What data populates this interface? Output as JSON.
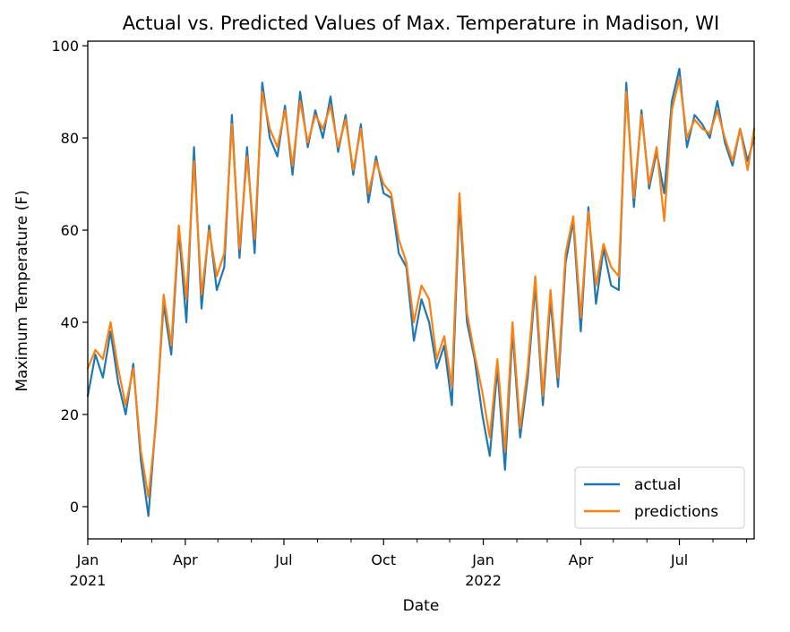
{
  "chart_data": {
    "type": "line",
    "title": "Actual vs. Predicted Values of Max. Temperature in Madison, WI",
    "xlabel": "Date",
    "ylabel": "Maximum Temperature (F)",
    "x_start": "2021-01-01",
    "x_end": "2022-09-08",
    "xlim": [
      "2021-01-01",
      "2022-09-08"
    ],
    "ylim": [
      -7,
      101
    ],
    "y_ticks": [
      0,
      20,
      40,
      60,
      80,
      100
    ],
    "x_major_ticks": [
      {
        "date": "2021-01-01",
        "label": "Jan",
        "year": "2021"
      },
      {
        "date": "2021-04-01",
        "label": "Apr",
        "year": ""
      },
      {
        "date": "2021-07-01",
        "label": "Jul",
        "year": ""
      },
      {
        "date": "2021-10-01",
        "label": "Oct",
        "year": ""
      },
      {
        "date": "2022-01-01",
        "label": "Jan",
        "year": "2022"
      },
      {
        "date": "2022-04-01",
        "label": "Apr",
        "year": ""
      },
      {
        "date": "2022-07-01",
        "label": "Jul",
        "year": ""
      }
    ],
    "x_minor_ticks": [
      "2021-02-01",
      "2021-03-01",
      "2021-05-01",
      "2021-06-01",
      "2021-08-01",
      "2021-09-01",
      "2021-11-01",
      "2021-12-01",
      "2022-02-01",
      "2022-03-01",
      "2022-05-01",
      "2022-06-01",
      "2022-08-01",
      "2022-09-01"
    ],
    "grid": false,
    "legend_position": "lower-right",
    "x_resolution": "weekly (approximate)",
    "series": [
      {
        "name": "actual",
        "color": "#1f77b4",
        "x": [
          "2021-01-01",
          "2021-01-08",
          "2021-01-15",
          "2021-01-22",
          "2021-01-29",
          "2021-02-05",
          "2021-02-12",
          "2021-02-19",
          "2021-02-26",
          "2021-03-05",
          "2021-03-12",
          "2021-03-19",
          "2021-03-26",
          "2021-04-02",
          "2021-04-09",
          "2021-04-16",
          "2021-04-23",
          "2021-04-30",
          "2021-05-07",
          "2021-05-14",
          "2021-05-21",
          "2021-05-28",
          "2021-06-04",
          "2021-06-11",
          "2021-06-18",
          "2021-06-25",
          "2021-07-02",
          "2021-07-09",
          "2021-07-16",
          "2021-07-23",
          "2021-07-30",
          "2021-08-06",
          "2021-08-13",
          "2021-08-20",
          "2021-08-27",
          "2021-09-03",
          "2021-09-10",
          "2021-09-17",
          "2021-09-24",
          "2021-10-01",
          "2021-10-08",
          "2021-10-15",
          "2021-10-22",
          "2021-10-29",
          "2021-11-05",
          "2021-11-12",
          "2021-11-19",
          "2021-11-26",
          "2021-12-03",
          "2021-12-10",
          "2021-12-17",
          "2021-12-24",
          "2021-12-31",
          "2022-01-07",
          "2022-01-14",
          "2022-01-21",
          "2022-01-28",
          "2022-02-04",
          "2022-02-11",
          "2022-02-18",
          "2022-02-25",
          "2022-03-04",
          "2022-03-11",
          "2022-03-18",
          "2022-03-25",
          "2022-04-01",
          "2022-04-08",
          "2022-04-15",
          "2022-04-22",
          "2022-04-29",
          "2022-05-06",
          "2022-05-13",
          "2022-05-20",
          "2022-05-27",
          "2022-06-03",
          "2022-06-10",
          "2022-06-17",
          "2022-06-24",
          "2022-07-01",
          "2022-07-08",
          "2022-07-15",
          "2022-07-22",
          "2022-07-29",
          "2022-08-05",
          "2022-08-12",
          "2022-08-19",
          "2022-08-26",
          "2022-09-02",
          "2022-09-08"
        ],
        "values": [
          24,
          33,
          28,
          38,
          27,
          20,
          31,
          10,
          -2,
          19,
          44,
          33,
          60,
          40,
          78,
          43,
          61,
          47,
          52,
          85,
          54,
          78,
          55,
          92,
          80,
          76,
          87,
          72,
          90,
          78,
          86,
          80,
          89,
          77,
          85,
          72,
          83,
          66,
          76,
          68,
          67,
          55,
          52,
          36,
          45,
          40,
          30,
          35,
          22,
          66,
          40,
          32,
          20,
          11,
          30,
          8,
          38,
          15,
          28,
          48,
          22,
          45,
          26,
          53,
          62,
          38,
          65,
          44,
          56,
          48,
          47,
          92,
          65,
          86,
          69,
          77,
          68,
          88,
          95,
          78,
          85,
          83,
          80,
          88,
          79,
          74,
          82,
          75,
          80
        ]
      },
      {
        "name": "predictions",
        "color": "#ff7f0e",
        "x": [
          "2021-01-01",
          "2021-01-08",
          "2021-01-15",
          "2021-01-22",
          "2021-01-29",
          "2021-02-05",
          "2021-02-12",
          "2021-02-19",
          "2021-02-26",
          "2021-03-05",
          "2021-03-12",
          "2021-03-19",
          "2021-03-26",
          "2021-04-02",
          "2021-04-09",
          "2021-04-16",
          "2021-04-23",
          "2021-04-30",
          "2021-05-07",
          "2021-05-14",
          "2021-05-21",
          "2021-05-28",
          "2021-06-04",
          "2021-06-11",
          "2021-06-18",
          "2021-06-25",
          "2021-07-02",
          "2021-07-09",
          "2021-07-16",
          "2021-07-23",
          "2021-07-30",
          "2021-08-06",
          "2021-08-13",
          "2021-08-20",
          "2021-08-27",
          "2021-09-03",
          "2021-09-10",
          "2021-09-17",
          "2021-09-24",
          "2021-10-01",
          "2021-10-08",
          "2021-10-15",
          "2021-10-22",
          "2021-10-29",
          "2021-11-05",
          "2021-11-12",
          "2021-11-19",
          "2021-11-26",
          "2021-12-03",
          "2021-12-10",
          "2021-12-17",
          "2021-12-24",
          "2021-12-31",
          "2022-01-07",
          "2022-01-14",
          "2022-01-21",
          "2022-01-28",
          "2022-02-04",
          "2022-02-11",
          "2022-02-18",
          "2022-02-25",
          "2022-03-04",
          "2022-03-11",
          "2022-03-18",
          "2022-03-25",
          "2022-04-01",
          "2022-04-08",
          "2022-04-15",
          "2022-04-22",
          "2022-04-29",
          "2022-05-06",
          "2022-05-13",
          "2022-05-20",
          "2022-05-27",
          "2022-06-03",
          "2022-06-10",
          "2022-06-17",
          "2022-06-24",
          "2022-07-01",
          "2022-07-08",
          "2022-07-15",
          "2022-07-22",
          "2022-07-29",
          "2022-08-05",
          "2022-08-12",
          "2022-08-19",
          "2022-08-26",
          "2022-09-02",
          "2022-09-08"
        ],
        "values": [
          30,
          34,
          32,
          40,
          30,
          22,
          30,
          12,
          2,
          18,
          46,
          35,
          61,
          45,
          75,
          46,
          60,
          50,
          55,
          83,
          56,
          76,
          58,
          90,
          82,
          78,
          86,
          74,
          88,
          79,
          85,
          82,
          87,
          78,
          84,
          73,
          82,
          68,
          75,
          70,
          68,
          58,
          53,
          40,
          48,
          45,
          32,
          37,
          26,
          68,
          42,
          33,
          25,
          15,
          32,
          12,
          40,
          17,
          30,
          50,
          24,
          47,
          28,
          55,
          63,
          41,
          64,
          48,
          57,
          52,
          50,
          90,
          67,
          85,
          70,
          78,
          62,
          86,
          93,
          80,
          84,
          82,
          81,
          86,
          80,
          75,
          82,
          73,
          82
        ]
      }
    ]
  }
}
